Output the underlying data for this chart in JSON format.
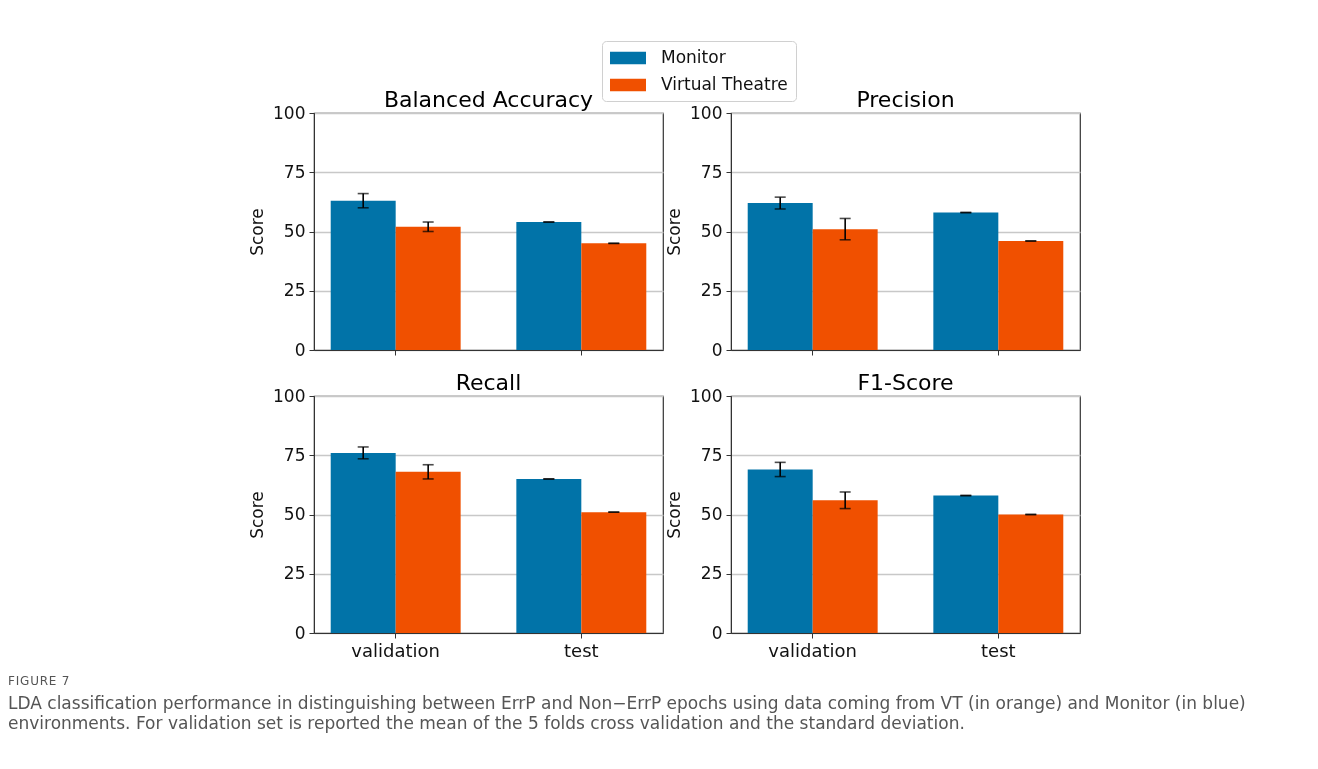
{
  "chart_data": [
    {
      "type": "bar",
      "title": "Balanced Accuracy",
      "ylabel": "Score",
      "categories": [
        null,
        null
      ],
      "series": [
        {
          "name": "Monitor",
          "color": "#0173a8",
          "values": [
            63,
            54
          ],
          "errors": [
            3,
            0
          ]
        },
        {
          "name": "Virtual Theatre",
          "color": "#f05000",
          "values": [
            52,
            45
          ],
          "errors": [
            2,
            0
          ]
        }
      ],
      "ylim": [
        0,
        100
      ],
      "yticks": [
        0,
        25,
        50,
        75,
        100
      ],
      "grid": "y",
      "legend": "top right"
    },
    {
      "type": "bar",
      "title": "Precision",
      "ylabel": "Score",
      "categories": [
        null,
        null
      ],
      "series": [
        {
          "color": "#0173a8",
          "values": [
            62,
            58
          ],
          "errors": [
            2.5,
            0
          ]
        },
        {
          "color": "#f05000",
          "values": [
            51,
            46
          ],
          "errors": [
            4.5,
            0
          ]
        }
      ],
      "ylim": [
        0,
        100
      ],
      "yticks": [
        0,
        25,
        50,
        75,
        100
      ],
      "grid": "y"
    },
    {
      "type": "bar",
      "title": "Recall",
      "ylabel": "Score",
      "categories": [
        "validation",
        "test"
      ],
      "series": [
        {
          "color": "#0173a8",
          "values": [
            76,
            65
          ],
          "errors": [
            2.5,
            0
          ]
        },
        {
          "color": "#f05000",
          "values": [
            68,
            51
          ],
          "errors": [
            3,
            0
          ]
        }
      ],
      "ylim": [
        0,
        100
      ],
      "yticks": [
        0,
        25,
        50,
        75,
        100
      ],
      "grid": "y"
    },
    {
      "type": "bar",
      "title": "F1-Score",
      "ylabel": "Score",
      "categories": [
        "validation",
        "test"
      ],
      "series": [
        {
          "color": "#0173a8",
          "values": [
            69,
            58
          ],
          "errors": [
            3,
            0
          ]
        },
        {
          "color": "#f05000",
          "values": [
            56,
            50
          ],
          "errors": [
            3.5,
            0
          ]
        }
      ],
      "ylim": [
        0,
        100
      ],
      "yticks": [
        0,
        25,
        50,
        75,
        100
      ],
      "grid": "y",
      "annotations": [
        "FIGURE 7",
        "LDA classification performance in distinguishing between ErrP and Non−ErrP epochs using data coming from VT (in orange) and Monitor (in blue) environments. For validation set is reported the mean of the 5 folds cross validation and the standard deviation."
      ]
    }
  ]
}
